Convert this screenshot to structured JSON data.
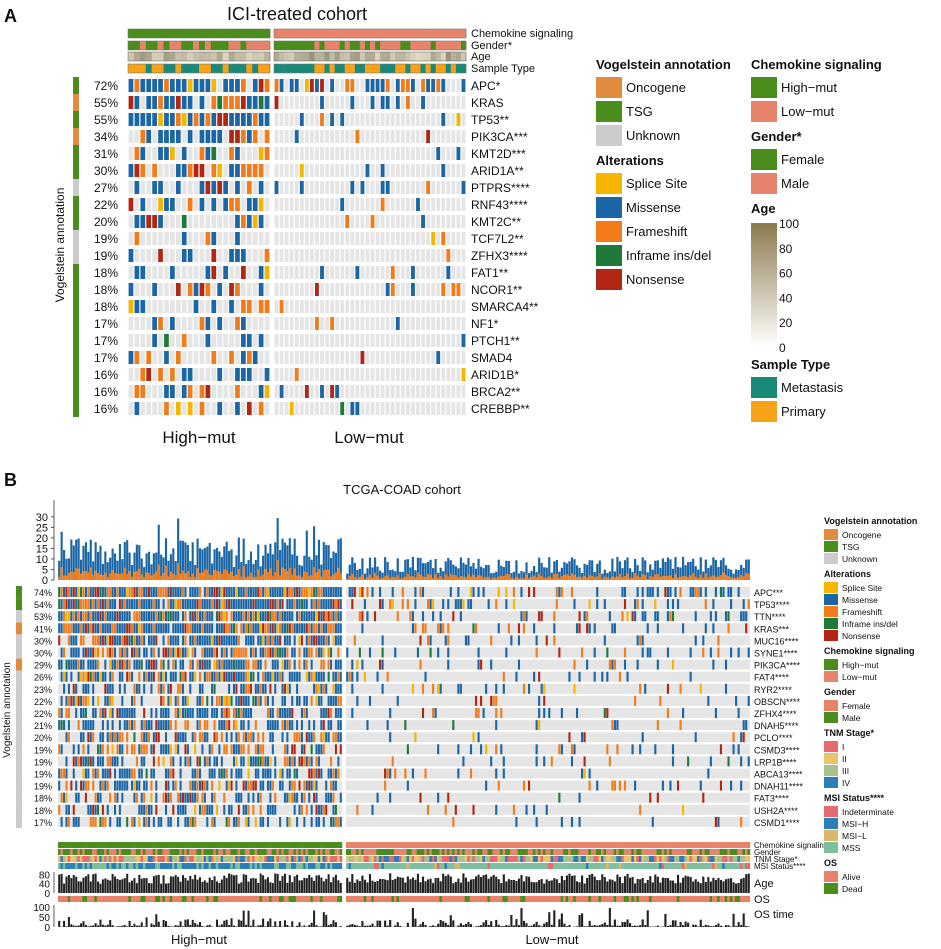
{
  "panelA": {
    "label": "A",
    "title": "ICI-treated cohort",
    "group_labels": [
      "High−mut",
      "Low−mut"
    ],
    "annotation_axis_label": "Vogelstein annotation",
    "top_tracks": [
      "Chemokine signaling",
      "Gender*",
      "Age",
      "Sample Type"
    ],
    "n_high": 24,
    "n_low": 38,
    "genes": [
      "APC*",
      "KRAS",
      "TP53**",
      "PIK3CA***",
      "KMT2D***",
      "ARID1A**",
      "PTPRS****",
      "RNF43****",
      "KMT2C**",
      "TCF7L2**",
      "ZFHX3****",
      "FAT1**",
      "NCOR1**",
      "SMARCA4**",
      "NF1*",
      "PTCH1**",
      "SMAD4",
      "ARID1B*",
      "BRCA2**",
      "CREBBP**"
    ],
    "percents": [
      "72%",
      "55%",
      "55%",
      "34%",
      "31%",
      "30%",
      "27%",
      "22%",
      "20%",
      "19%",
      "19%",
      "18%",
      "18%",
      "18%",
      "17%",
      "17%",
      "17%",
      "16%",
      "16%",
      "16%"
    ],
    "freq_values": [
      72,
      55,
      55,
      34,
      31,
      30,
      27,
      22,
      20,
      19,
      19,
      18,
      18,
      18,
      17,
      17,
      17,
      16,
      16,
      16
    ],
    "vogelstein": [
      "TSG",
      "Oncogene",
      "TSG",
      "Oncogene",
      "TSG",
      "TSG",
      "Unknown",
      "TSG",
      "TSG",
      "Unknown",
      "Unknown",
      "TSG",
      "TSG",
      "TSG",
      "TSG",
      "TSG",
      "TSG",
      "TSG",
      "TSG",
      "TSG"
    ]
  },
  "panelB": {
    "label": "B",
    "title": "TCGA-COAD cohort",
    "group_labels": [
      "High−mut",
      "Low−mut"
    ],
    "annotation_axis_label": "Vogelstein annotation",
    "bottom_tracks": [
      "Chemokine signaling",
      "Gender",
      "TNM Stage*",
      "MSI Status****"
    ],
    "age_label": "Age",
    "os_label": "OS",
    "os_time_label": "OS time",
    "n_high": 117,
    "n_low": 160,
    "tmb_axis": {
      "ylim": [
        0,
        38
      ],
      "ticks": [
        "0",
        "5",
        "10",
        "15",
        "20",
        "25",
        "30"
      ]
    },
    "age_axis": {
      "ylim": [
        0,
        90
      ],
      "ticks": [
        "0",
        "40",
        "80"
      ]
    },
    "ostime_axis": {
      "ylim": [
        0,
        110
      ],
      "ticks": [
        "0",
        "50",
        "100"
      ]
    },
    "genes": [
      "APC***",
      "TP53****",
      "TTN****",
      "KRAS***",
      "MUC16****",
      "SYNE1****",
      "PIK3CA****",
      "FAT4****",
      "RYR2****",
      "OBSCN****",
      "ZFHX4****",
      "DNAH5****",
      "PCLO****",
      "CSMD3****",
      "LRP1B****",
      "ABCA13****",
      "DNAH11****",
      "FAT3****",
      "USH2A****",
      "CSMD1****"
    ],
    "percents": [
      "74%",
      "54%",
      "53%",
      "41%",
      "30%",
      "30%",
      "29%",
      "26%",
      "23%",
      "22%",
      "22%",
      "21%",
      "20%",
      "19%",
      "19%",
      "19%",
      "19%",
      "18%",
      "18%",
      "17%"
    ],
    "freq_values": [
      74,
      54,
      53,
      41,
      30,
      30,
      29,
      26,
      23,
      22,
      22,
      21,
      20,
      19,
      19,
      19,
      19,
      18,
      18,
      17
    ],
    "vogelstein": [
      "TSG",
      "TSG",
      "Unknown",
      "Oncogene",
      "Unknown",
      "Unknown",
      "Oncogene",
      "Unknown",
      "Unknown",
      "Unknown",
      "Unknown",
      "Unknown",
      "Unknown",
      "Unknown",
      "Unknown",
      "Unknown",
      "Unknown",
      "Unknown",
      "Unknown",
      "Unknown"
    ]
  },
  "legendA": [
    {
      "title": "Vogelstein annotation",
      "type": "keys",
      "items": [
        {
          "label": "Oncogene",
          "color": "#E28B3F"
        },
        {
          "label": "TSG",
          "color": "#4A8D1C"
        },
        {
          "label": "Unknown",
          "color": "#CCCCCC"
        }
      ]
    },
    {
      "title": "Alterations",
      "type": "keys",
      "items": [
        {
          "label": "Splice Site",
          "color": "#F8B500"
        },
        {
          "label": "Missense",
          "color": "#1A66A6"
        },
        {
          "label": "Frameshift",
          "color": "#F47B19"
        },
        {
          "label": "Inframe ins/del",
          "color": "#1F7A3A"
        },
        {
          "label": "Nonsense",
          "color": "#B22613"
        }
      ]
    },
    {
      "title": "Chemokine signaling",
      "type": "keys",
      "items": [
        {
          "label": "High−mut",
          "color": "#4A8D1C"
        },
        {
          "label": "Low−mut",
          "color": "#E8836B"
        }
      ]
    },
    {
      "title": "Gender*",
      "type": "keys",
      "items": [
        {
          "label": "Female",
          "color": "#4A8D1C"
        },
        {
          "label": "Male",
          "color": "#E8836B"
        }
      ]
    },
    {
      "title": "Age",
      "type": "gradient",
      "ticks": [
        "100",
        "80",
        "60",
        "40",
        "20",
        "0"
      ],
      "colors": [
        "#8B7A4E",
        "#FFFFFF"
      ]
    },
    {
      "title": "Sample Type",
      "type": "keys",
      "items": [
        {
          "label": "Metastasis",
          "color": "#1A8A78"
        },
        {
          "label": "Primary",
          "color": "#F8A21A"
        }
      ]
    }
  ],
  "legendB": [
    {
      "title": "Vogelstein annotation",
      "items": [
        {
          "label": "Oncogene",
          "color": "#E28B3F"
        },
        {
          "label": "TSG",
          "color": "#4A8D1C"
        },
        {
          "label": "Unknown",
          "color": "#CCCCCC"
        }
      ]
    },
    {
      "title": "Alterations",
      "items": [
        {
          "label": "Splice Site",
          "color": "#F8B500"
        },
        {
          "label": "Missense",
          "color": "#1A66A6"
        },
        {
          "label": "Frameshift",
          "color": "#F47B19"
        },
        {
          "label": "Inframe ins/del",
          "color": "#1F7A3A"
        },
        {
          "label": "Nonsense",
          "color": "#B22613"
        }
      ]
    },
    {
      "title": "Chemokine signaling",
      "items": [
        {
          "label": "High−mut",
          "color": "#4A8D1C"
        },
        {
          "label": "Low−mut",
          "color": "#E8836B"
        }
      ]
    },
    {
      "title": "Gender",
      "items": [
        {
          "label": "Female",
          "color": "#E8836B"
        },
        {
          "label": "Male",
          "color": "#4A8D1C"
        }
      ]
    },
    {
      "title": "TNM Stage*",
      "items": [
        {
          "label": "I",
          "color": "#E56B6F"
        },
        {
          "label": "II",
          "color": "#E9C46A"
        },
        {
          "label": "III",
          "color": "#A7C28F"
        },
        {
          "label": "IV",
          "color": "#2A7FB8"
        }
      ]
    },
    {
      "title": "MSI Status****",
      "items": [
        {
          "label": "Indeterminate",
          "color": "#E56B6F"
        },
        {
          "label": "MSI−H",
          "color": "#2A7FB8"
        },
        {
          "label": "MSI−L",
          "color": "#D9B76A"
        },
        {
          "label": "MSS",
          "color": "#7FBF9F"
        }
      ]
    },
    {
      "title": "OS",
      "items": [
        {
          "label": "Alive",
          "color": "#E8836B"
        },
        {
          "label": "Dead",
          "color": "#4A8D1C"
        }
      ]
    }
  ],
  "colors": {
    "missense": "#1A66A6",
    "frameshift": "#F47B19",
    "nonsense": "#B22613",
    "splice": "#F8B500",
    "inframe": "#1F7A3A",
    "empty": "#E5E5E5",
    "highmut": "#4A8D1C",
    "lowmut": "#E8836B",
    "oncogene": "#E28B3F",
    "tsg": "#4A8D1C",
    "unknown": "#CCCCCC",
    "female": "#4A8D1C",
    "male": "#E8836B",
    "metastasis": "#1A8A78",
    "primary": "#F8A21A",
    "age_dark": "#8B7A4E",
    "bar": "#222222"
  }
}
